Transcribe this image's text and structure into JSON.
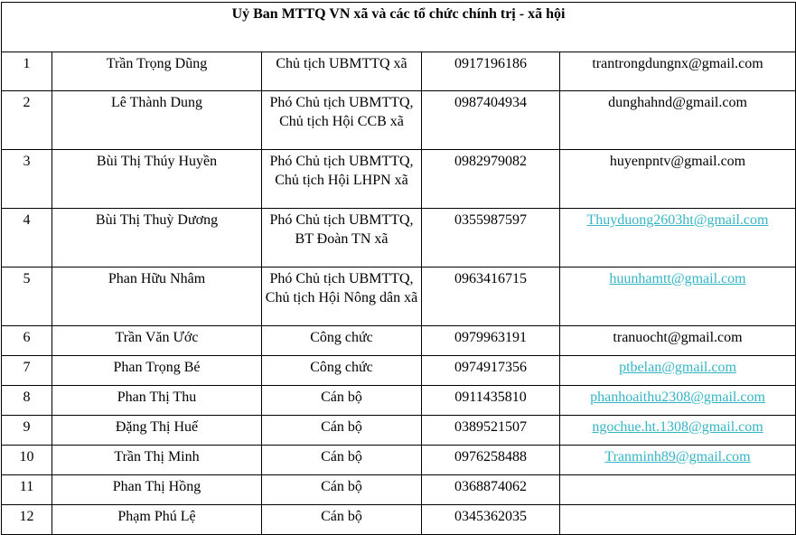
{
  "title": "Uỷ Ban MTTQ VN xã và các tổ chức chính trị - xã hội",
  "link_color": "#35b5c6",
  "rows": [
    {
      "no": "1",
      "name": "Trần Trọng Dũng",
      "position": "Chủ tịch UBMTTQ xã",
      "phone": "0917196186",
      "email": "trantrongdungnx@gmail.com",
      "link": false
    },
    {
      "no": "2",
      "name": "Lê Thành Dung",
      "position": "Phó Chủ tịch UBMTTQ, Chủ tịch Hội CCB xã",
      "phone": "0987404934",
      "email": "dunghahnd@gmail.com",
      "link": false
    },
    {
      "no": "3",
      "name": "Bùi Thị Thúy Huyền",
      "position": "Phó Chủ tịch UBMTTQ, Chủ tịch Hội LHPN xã",
      "phone": "0982979082",
      "email": "huyenpntv@gmail.com",
      "link": false
    },
    {
      "no": "4",
      "name": "Bùi Thị Thuỳ Dương",
      "position": "Phó Chủ tịch UBMTTQ, BT Đoàn TN xã",
      "phone": "0355987597",
      "email": "Thuyduong2603ht@gmail.com",
      "link": true
    },
    {
      "no": "5",
      "name": "Phan Hữu Nhâm",
      "position": "Phó Chủ tịch UBMTTQ, Chủ tịch Hội Nông dân xã",
      "phone": "0963416715",
      "email": "huunhamtt@gmail.com",
      "link": true
    },
    {
      "no": "6",
      "name": "Trần Văn Ước",
      "position": "Công chức",
      "phone": "0979963191",
      "email": "tranuocht@gmail.com",
      "link": false
    },
    {
      "no": "7",
      "name": "Phan Trọng Bé",
      "position": "Công chức",
      "phone": "0974917356",
      "email": "ptbelan@gmail.com",
      "link": true
    },
    {
      "no": "8",
      "name": "Phan Thị Thu",
      "position": "Cán bộ",
      "phone": "0911435810",
      "email": "phanhoaithu2308@gmail.com",
      "link": true
    },
    {
      "no": "9",
      "name": "Đặng Thị Huế",
      "position": "Cán bộ",
      "phone": "0389521507",
      "email": "ngochue.ht.1308@gmail.com",
      "link": true
    },
    {
      "no": "10",
      "name": "Trần Thị Minh",
      "position": "Cán bộ",
      "phone": "0976258488",
      "email": "Tranminh89@gmail.com",
      "link": true
    },
    {
      "no": "11",
      "name": "Phan Thị Hồng",
      "position": "Cán bộ",
      "phone": "0368874062",
      "email": "",
      "link": false
    },
    {
      "no": "12",
      "name": "Phạm Phú Lệ",
      "position": "Cán bộ",
      "phone": "0345362035",
      "email": "",
      "link": false
    }
  ]
}
